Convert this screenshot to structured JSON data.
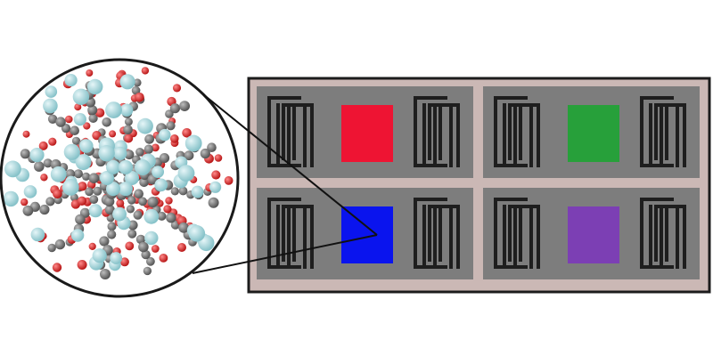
{
  "figure": {
    "background": "#ffffff",
    "molecule": {
      "outline_color": "#1a1a1a",
      "atom_colors": {
        "carbon": "#7a7a7a",
        "oxygen": "#d42a2a",
        "metal": "#a6d8de"
      }
    },
    "device": {
      "frame_color": "#1c1c1c",
      "border_color": "#cbb8b5",
      "panel_color": "#7d7d7d",
      "electrode_color": "#1e1e1e",
      "panels": [
        {
          "id": "top-left",
          "sensor_color": "#ee1433",
          "highlighted": false
        },
        {
          "id": "top-right",
          "sensor_color": "#27a03a",
          "highlighted": false
        },
        {
          "id": "bottom-left",
          "sensor_color": "#0a14ee",
          "highlighted": true
        },
        {
          "id": "bottom-right",
          "sensor_color": "#7c3fb4",
          "highlighted": false
        }
      ]
    }
  }
}
